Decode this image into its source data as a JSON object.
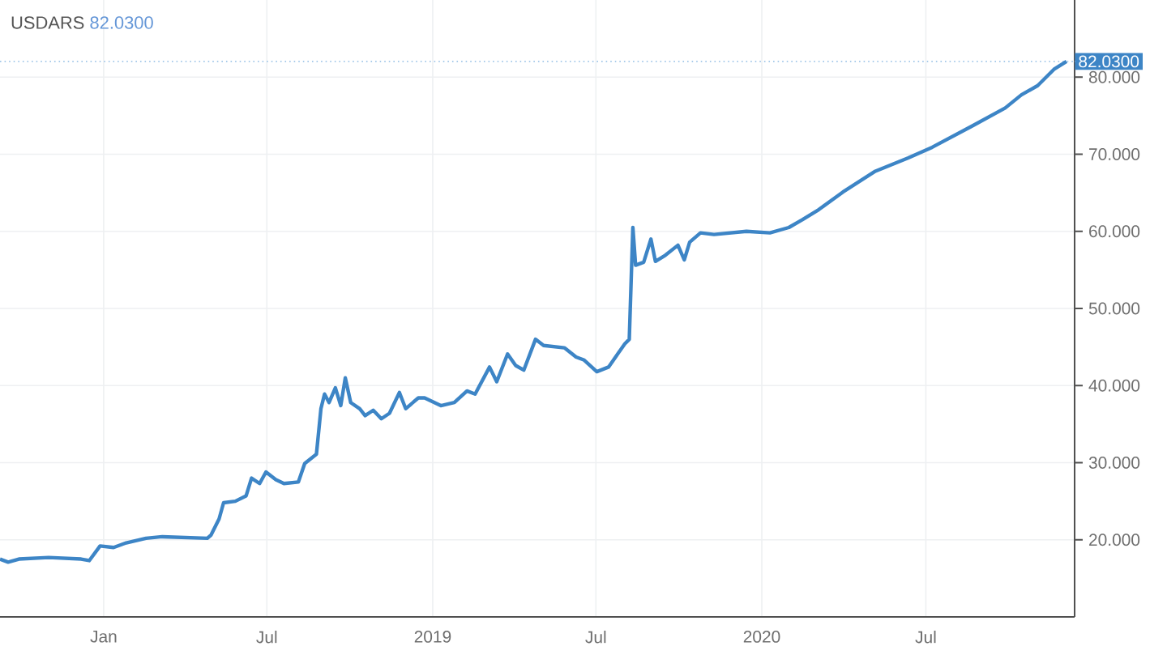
{
  "chart_data": {
    "type": "line",
    "title": "USDARS",
    "subtitle": "82.0300",
    "x": [
      "2017-09-08",
      "2017-09-17",
      "2017-09-29",
      "2017-11-01",
      "2017-12-07",
      "2017-12-16",
      "2017-12-28",
      "2018-01-12",
      "2018-01-26",
      "2018-02-17",
      "2018-03-07",
      "2018-04-26",
      "2018-04-30",
      "2018-05-09",
      "2018-05-14",
      "2018-05-27",
      "2018-06-08",
      "2018-06-14",
      "2018-06-23",
      "2018-06-30",
      "2018-07-11",
      "2018-07-20",
      "2018-08-05",
      "2018-08-12",
      "2018-08-25",
      "2018-08-30",
      "2018-09-03",
      "2018-09-08",
      "2018-09-15",
      "2018-09-21",
      "2018-09-26",
      "2018-10-02",
      "2018-10-12",
      "2018-10-18",
      "2018-10-27",
      "2018-11-05",
      "2018-11-14",
      "2018-11-25",
      "2018-12-02",
      "2018-12-16",
      "2018-12-23",
      "2019-01-10",
      "2019-01-25",
      "2019-02-08",
      "2019-02-17",
      "2019-03-05",
      "2019-03-13",
      "2019-03-25",
      "2019-04-03",
      "2019-04-12",
      "2019-04-25",
      "2019-05-04",
      "2019-05-27",
      "2019-06-09",
      "2019-06-18",
      "2019-07-02",
      "2019-07-15",
      "2019-08-02",
      "2019-08-07",
      "2019-08-11",
      "2019-08-14",
      "2019-08-23",
      "2019-08-31",
      "2019-09-05",
      "2019-09-16",
      "2019-09-30",
      "2019-10-07",
      "2019-10-13",
      "2019-10-25",
      "2019-11-09",
      "2019-12-15",
      "2020-01-10",
      "2020-01-31",
      "2020-02-15",
      "2020-03-04",
      "2020-03-31",
      "2020-05-06",
      "2020-06-11",
      "2020-07-08",
      "2020-08-22",
      "2020-09-27",
      "2020-10-15",
      "2020-11-02",
      "2020-11-20",
      "2020-12-04"
    ],
    "series": [
      {
        "color": "#3d85c6",
        "values": [
          17.5,
          17.1,
          17.5,
          17.7,
          17.5,
          17.3,
          19.2,
          19.0,
          19.6,
          20.2,
          20.4,
          20.2,
          20.6,
          22.7,
          24.8,
          25.0,
          25.7,
          28.0,
          27.3,
          28.8,
          27.8,
          27.3,
          27.5,
          29.9,
          31.1,
          37.0,
          38.9,
          37.8,
          39.7,
          37.4,
          41.0,
          37.8,
          37.0,
          36.1,
          36.8,
          35.7,
          36.4,
          39.1,
          37.0,
          38.4,
          38.4,
          37.4,
          37.8,
          39.3,
          38.9,
          42.4,
          40.5,
          44.1,
          42.6,
          42.0,
          46.0,
          45.2,
          44.9,
          43.7,
          43.3,
          41.8,
          42.4,
          45.4,
          46.0,
          60.5,
          55.6,
          56.0,
          59.0,
          56.1,
          56.9,
          58.2,
          56.3,
          58.6,
          59.8,
          59.6,
          60.0,
          59.8,
          60.5,
          61.5,
          62.8,
          65.1,
          67.8,
          69.5,
          70.9,
          73.7,
          76.0,
          77.7,
          78.9,
          81.0,
          82.03
        ]
      }
    ],
    "xlim": [
      "2017-09-08",
      "2020-12-13"
    ],
    "xticks": [
      {
        "value": "2018-01-01",
        "label": "Jan"
      },
      {
        "value": "2018-07-01",
        "label": "Jul"
      },
      {
        "value": "2019-01-01",
        "label": "2019"
      },
      {
        "value": "2019-07-01",
        "label": "Jul"
      },
      {
        "value": "2020-01-01",
        "label": "2020"
      },
      {
        "value": "2020-07-01",
        "label": "Jul"
      }
    ],
    "ylim": [
      10,
      90
    ],
    "yticks": [
      {
        "value": 20,
        "label": "20.000"
      },
      {
        "value": 30,
        "label": "30.000"
      },
      {
        "value": 40,
        "label": "40.000"
      },
      {
        "value": 50,
        "label": "50.000"
      },
      {
        "value": 60,
        "label": "60.000"
      },
      {
        "value": 70,
        "label": "70.000"
      },
      {
        "value": 80,
        "label": "80.000"
      }
    ],
    "grid": true,
    "ref_lines": [
      {
        "axis": "y",
        "value": 82.03,
        "label": "82.0300",
        "color": "#9fc5e8",
        "line_style": "dotted"
      }
    ]
  }
}
